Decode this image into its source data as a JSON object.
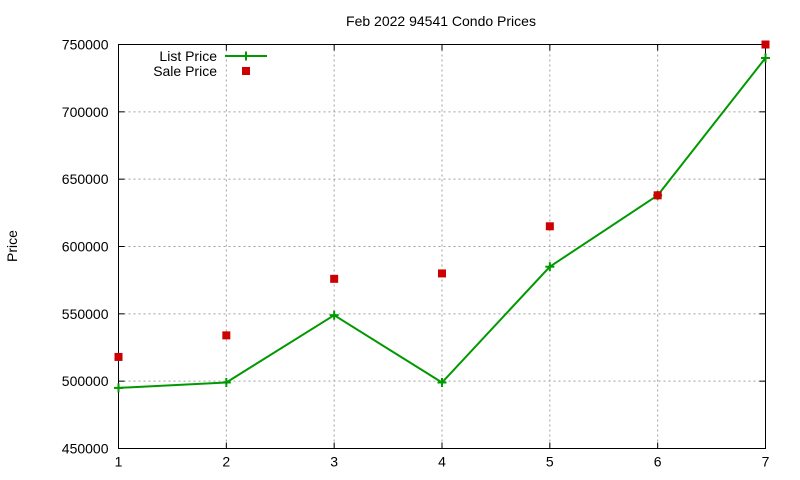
{
  "chart_data": {
    "type": "line",
    "title": "Feb 2022 94541 Condo Prices",
    "xlabel": "",
    "ylabel": "Price",
    "x": [
      1,
      2,
      3,
      4,
      5,
      6,
      7
    ],
    "xlim": [
      1,
      7
    ],
    "ylim": [
      450000,
      750000
    ],
    "xticks": [
      "1",
      "2",
      "3",
      "4",
      "5",
      "6",
      "7"
    ],
    "yticks": [
      "450000",
      "500000",
      "550000",
      "600000",
      "650000",
      "700000",
      "750000"
    ],
    "grid": true,
    "legend_position": "top-left",
    "series": [
      {
        "name": "List Price",
        "style": "linespoints",
        "marker": "plus",
        "color": "#009900",
        "values": [
          495000,
          499000,
          549000,
          499000,
          585000,
          638000,
          740000
        ]
      },
      {
        "name": "Sale Price",
        "style": "points",
        "marker": "square",
        "color": "#cc0000",
        "values": [
          518000,
          534000,
          576000,
          580000,
          615000,
          638000,
          750000
        ]
      }
    ]
  }
}
